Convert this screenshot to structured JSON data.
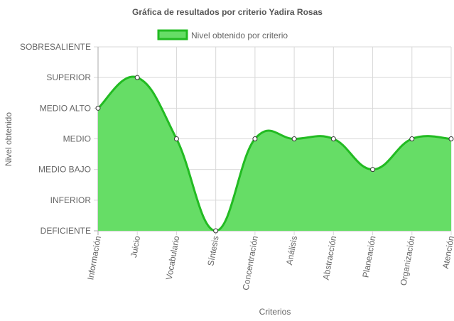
{
  "chart_data": {
    "type": "area",
    "title": "Gráfica de resultados por criterio Yadira Rosas",
    "xlabel": "Criterios",
    "ylabel": "Nivel obtenido",
    "y_levels": [
      "DEFICIENTE",
      "INFERIOR",
      "MEDIO BAJO",
      "MEDIO",
      "MEDIO ALTO",
      "SUPERIOR",
      "SOBRESALIENTE"
    ],
    "ylim": [
      0,
      6
    ],
    "categories": [
      "Información",
      "Juicio",
      "Vocabulario",
      "Síntesis",
      "Concentración",
      "Análisis",
      "Abstracción",
      "Planeación",
      "Organización",
      "Atención"
    ],
    "series": [
      {
        "name": "Nivel obtenido por criterio",
        "values": [
          4,
          5,
          3,
          0,
          3,
          3,
          3,
          2,
          3,
          3
        ]
      }
    ],
    "grid": true,
    "legend_position": "top",
    "colors": {
      "fill": "#66dd66",
      "line": "#22bb22",
      "point_fill": "#ffffff",
      "point_stroke": "#333333",
      "grid": "#d9d9d9",
      "axis": "#aaaaaa"
    }
  }
}
